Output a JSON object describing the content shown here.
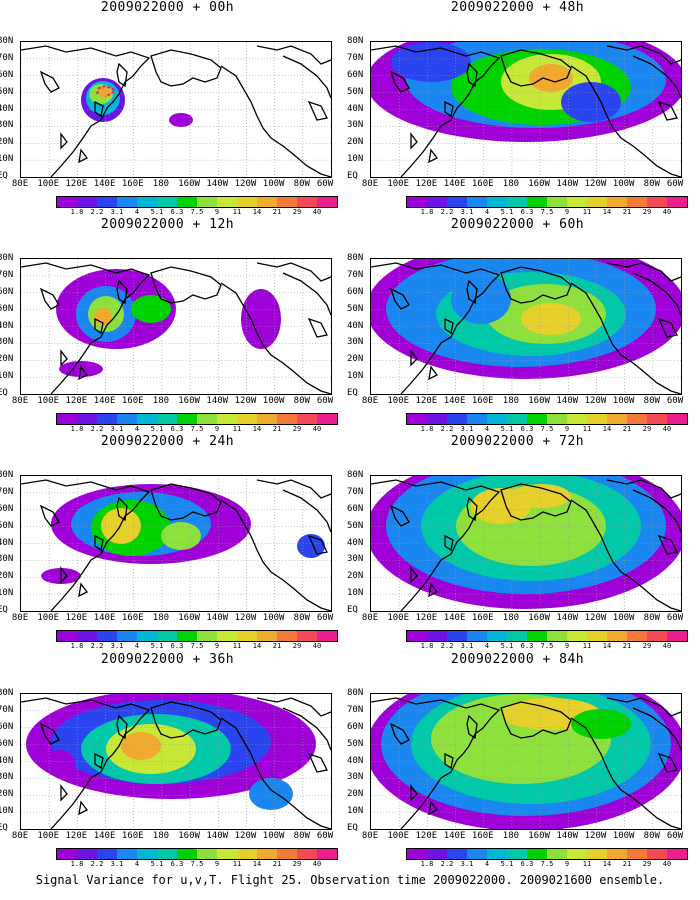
{
  "panels": [
    {
      "title": "2009022000 + 00h",
      "level": 0
    },
    {
      "title": "2009022000 + 12h",
      "level": 1
    },
    {
      "title": "2009022000 + 24h",
      "level": 2
    },
    {
      "title": "2009022000 + 36h",
      "level": 3
    },
    {
      "title": "2009022000 + 48h",
      "level": 4
    },
    {
      "title": "2009022000 + 60h",
      "level": 5
    },
    {
      "title": "2009022000 + 72h",
      "level": 6
    },
    {
      "title": "2009022000 + 84h",
      "level": 7
    }
  ],
  "lat_labels": [
    "80N",
    "70N",
    "60N",
    "50N",
    "40N",
    "30N",
    "20N",
    "10N",
    "EQ"
  ],
  "lon_labels": [
    "80E",
    "100E",
    "120E",
    "140E",
    "160E",
    "180",
    "160W",
    "140W",
    "120W",
    "100W",
    "80W",
    "60W"
  ],
  "colorbar": {
    "colors": [
      "#9f00d7",
      "#6e12e6",
      "#2a44ef",
      "#1a86f0",
      "#00b7d8",
      "#00c8a8",
      "#00d200",
      "#8ee13c",
      "#c8e838",
      "#e6d02a",
      "#f0aa30",
      "#f57a3a",
      "#f44a55",
      "#ec1e8e"
    ],
    "labels": [
      "1.8",
      "2.2",
      "3.1",
      "4",
      "5.1",
      "6.3",
      "7.5",
      "9",
      "11",
      "14",
      "21",
      "29",
      "40"
    ]
  },
  "caption": "Signal Variance for u,v,T. Flight 25. Observation time 2009022000. 2009021600 ensemble."
}
